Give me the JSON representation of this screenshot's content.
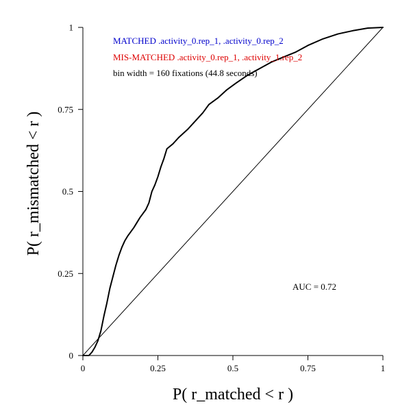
{
  "chart_data": {
    "type": "line",
    "xlabel": "P( r_matched < r )",
    "ylabel": "P( r_mismatched < r )",
    "xlim": [
      0,
      1
    ],
    "ylim": [
      0,
      1
    ],
    "x_ticks": [
      "0",
      "0.25",
      "0.5",
      "0.75",
      "1"
    ],
    "y_ticks": [
      "0",
      "0.25",
      "0.5",
      "0.75",
      "1"
    ],
    "grid": false,
    "annotations": {
      "matched": "MATCHED .activity_0.rep_1, .activity_0.rep_2",
      "mismatched": "MIS-MATCHED .activity_0.rep_1, .activity_1.rep_2",
      "bin_width": "bin width = 160 fixations (44.8 seconds)",
      "auc": "AUC = 0.72"
    },
    "colors": {
      "matched": "#0000cc",
      "mismatched": "#dd0000",
      "text": "#000000",
      "line": "#000000"
    },
    "series": [
      {
        "values": [
          [
            0.0,
            0.0
          ],
          [
            0.02,
            0.0
          ],
          [
            0.03,
            0.01
          ],
          [
            0.04,
            0.025
          ],
          [
            0.05,
            0.045
          ],
          [
            0.06,
            0.075
          ],
          [
            0.07,
            0.12
          ],
          [
            0.08,
            0.16
          ],
          [
            0.09,
            0.205
          ],
          [
            0.1,
            0.24
          ],
          [
            0.11,
            0.275
          ],
          [
            0.12,
            0.305
          ],
          [
            0.13,
            0.33
          ],
          [
            0.14,
            0.35
          ],
          [
            0.15,
            0.365
          ],
          [
            0.17,
            0.39
          ],
          [
            0.19,
            0.42
          ],
          [
            0.21,
            0.445
          ],
          [
            0.22,
            0.465
          ],
          [
            0.23,
            0.5
          ],
          [
            0.24,
            0.52
          ],
          [
            0.25,
            0.545
          ],
          [
            0.26,
            0.575
          ],
          [
            0.27,
            0.6
          ],
          [
            0.28,
            0.63
          ],
          [
            0.3,
            0.645
          ],
          [
            0.32,
            0.665
          ],
          [
            0.35,
            0.69
          ],
          [
            0.37,
            0.71
          ],
          [
            0.4,
            0.74
          ],
          [
            0.42,
            0.765
          ],
          [
            0.45,
            0.785
          ],
          [
            0.48,
            0.81
          ],
          [
            0.51,
            0.83
          ],
          [
            0.55,
            0.855
          ],
          [
            0.59,
            0.875
          ],
          [
            0.63,
            0.895
          ],
          [
            0.67,
            0.91
          ],
          [
            0.71,
            0.925
          ],
          [
            0.75,
            0.945
          ],
          [
            0.8,
            0.965
          ],
          [
            0.85,
            0.98
          ],
          [
            0.9,
            0.99
          ],
          [
            0.95,
            0.998
          ],
          [
            1.0,
            1.0
          ]
        ]
      },
      {
        "values": [
          [
            0,
            0
          ],
          [
            1,
            1
          ]
        ]
      }
    ]
  }
}
